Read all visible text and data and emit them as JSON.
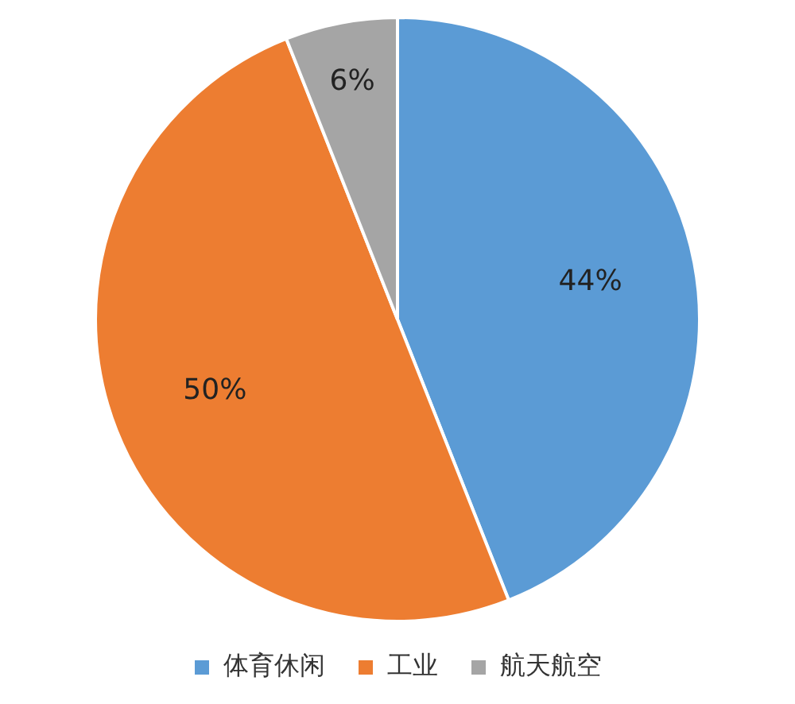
{
  "chart_data": {
    "type": "pie",
    "categories": [
      "体育休闲",
      "工业",
      "航天航空"
    ],
    "values": [
      44,
      50,
      6
    ],
    "colors": [
      "#5b9bd5",
      "#ed7d31",
      "#a5a5a5"
    ],
    "value_labels": [
      "44%",
      "50%",
      "6%"
    ],
    "legend": "bottom"
  }
}
